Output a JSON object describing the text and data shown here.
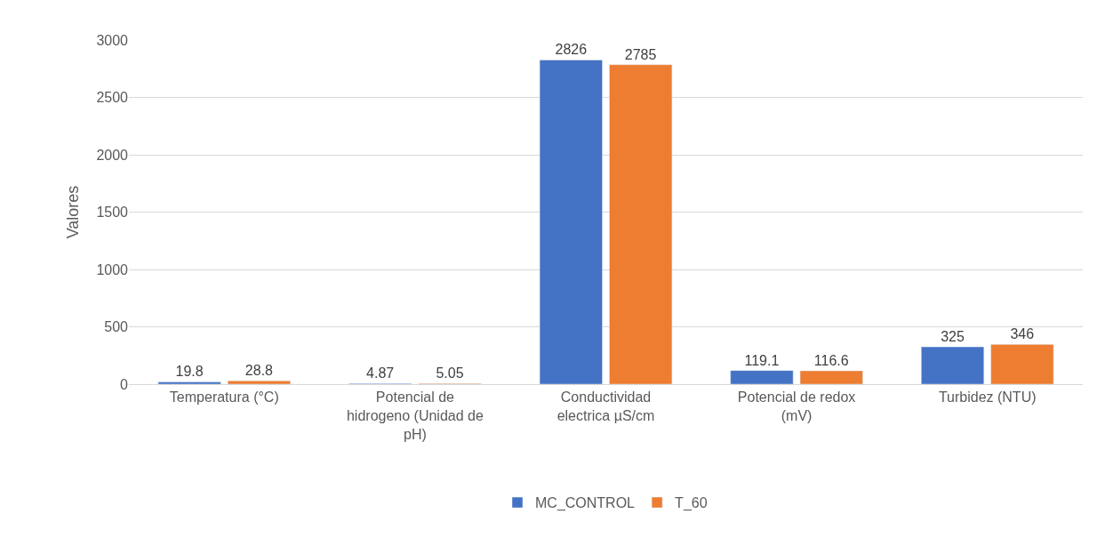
{
  "chart_data": {
    "type": "bar",
    "ylabel": "Valores",
    "categories": [
      "Temperatura (°C)",
      "Potencial de hidrogeno (Unidad de pH)",
      "Conductividad electrica µS/cm",
      "Potencial de redox (mV)",
      "Turbidez (NTU)"
    ],
    "series": [
      {
        "name": "MC_CONTROL",
        "color": "#4472c4",
        "values": [
          19.8,
          4.87,
          2826,
          119.1,
          325
        ]
      },
      {
        "name": "T_60",
        "color": "#ed7d31",
        "values": [
          28.8,
          5.05,
          2785,
          116.6,
          346
        ]
      }
    ],
    "ylim": [
      0,
      3000
    ],
    "yticks": [
      0,
      500,
      1000,
      1500,
      2000,
      2500,
      3000
    ],
    "grid": "y",
    "legend": "bottom",
    "data_labels": true
  }
}
